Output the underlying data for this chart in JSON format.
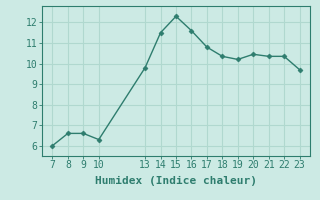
{
  "x": [
    7,
    8,
    9,
    10,
    13,
    14,
    15,
    16,
    17,
    18,
    19,
    20,
    21,
    22,
    23
  ],
  "y": [
    6.0,
    6.6,
    6.6,
    6.3,
    9.8,
    11.5,
    12.3,
    11.6,
    10.8,
    10.35,
    10.2,
    10.45,
    10.35,
    10.35,
    9.7
  ],
  "xticks": [
    7,
    8,
    9,
    10,
    13,
    14,
    15,
    16,
    17,
    18,
    19,
    20,
    21,
    22,
    23
  ],
  "yticks": [
    6,
    7,
    8,
    9,
    10,
    11,
    12
  ],
  "ylim": [
    5.5,
    12.8
  ],
  "xlim": [
    6.3,
    23.7
  ],
  "xlabel": "Humidex (Indice chaleur)",
  "line_color": "#2e7d6e",
  "marker": "D",
  "marker_size": 2.5,
  "bg_color": "#cceae4",
  "grid_color": "#b0d8cf",
  "axis_color": "#2e7d6e",
  "tick_color": "#2e7d6e",
  "label_color": "#2e7d6e",
  "font_family": "monospace",
  "tick_fontsize": 7,
  "label_fontsize": 8
}
